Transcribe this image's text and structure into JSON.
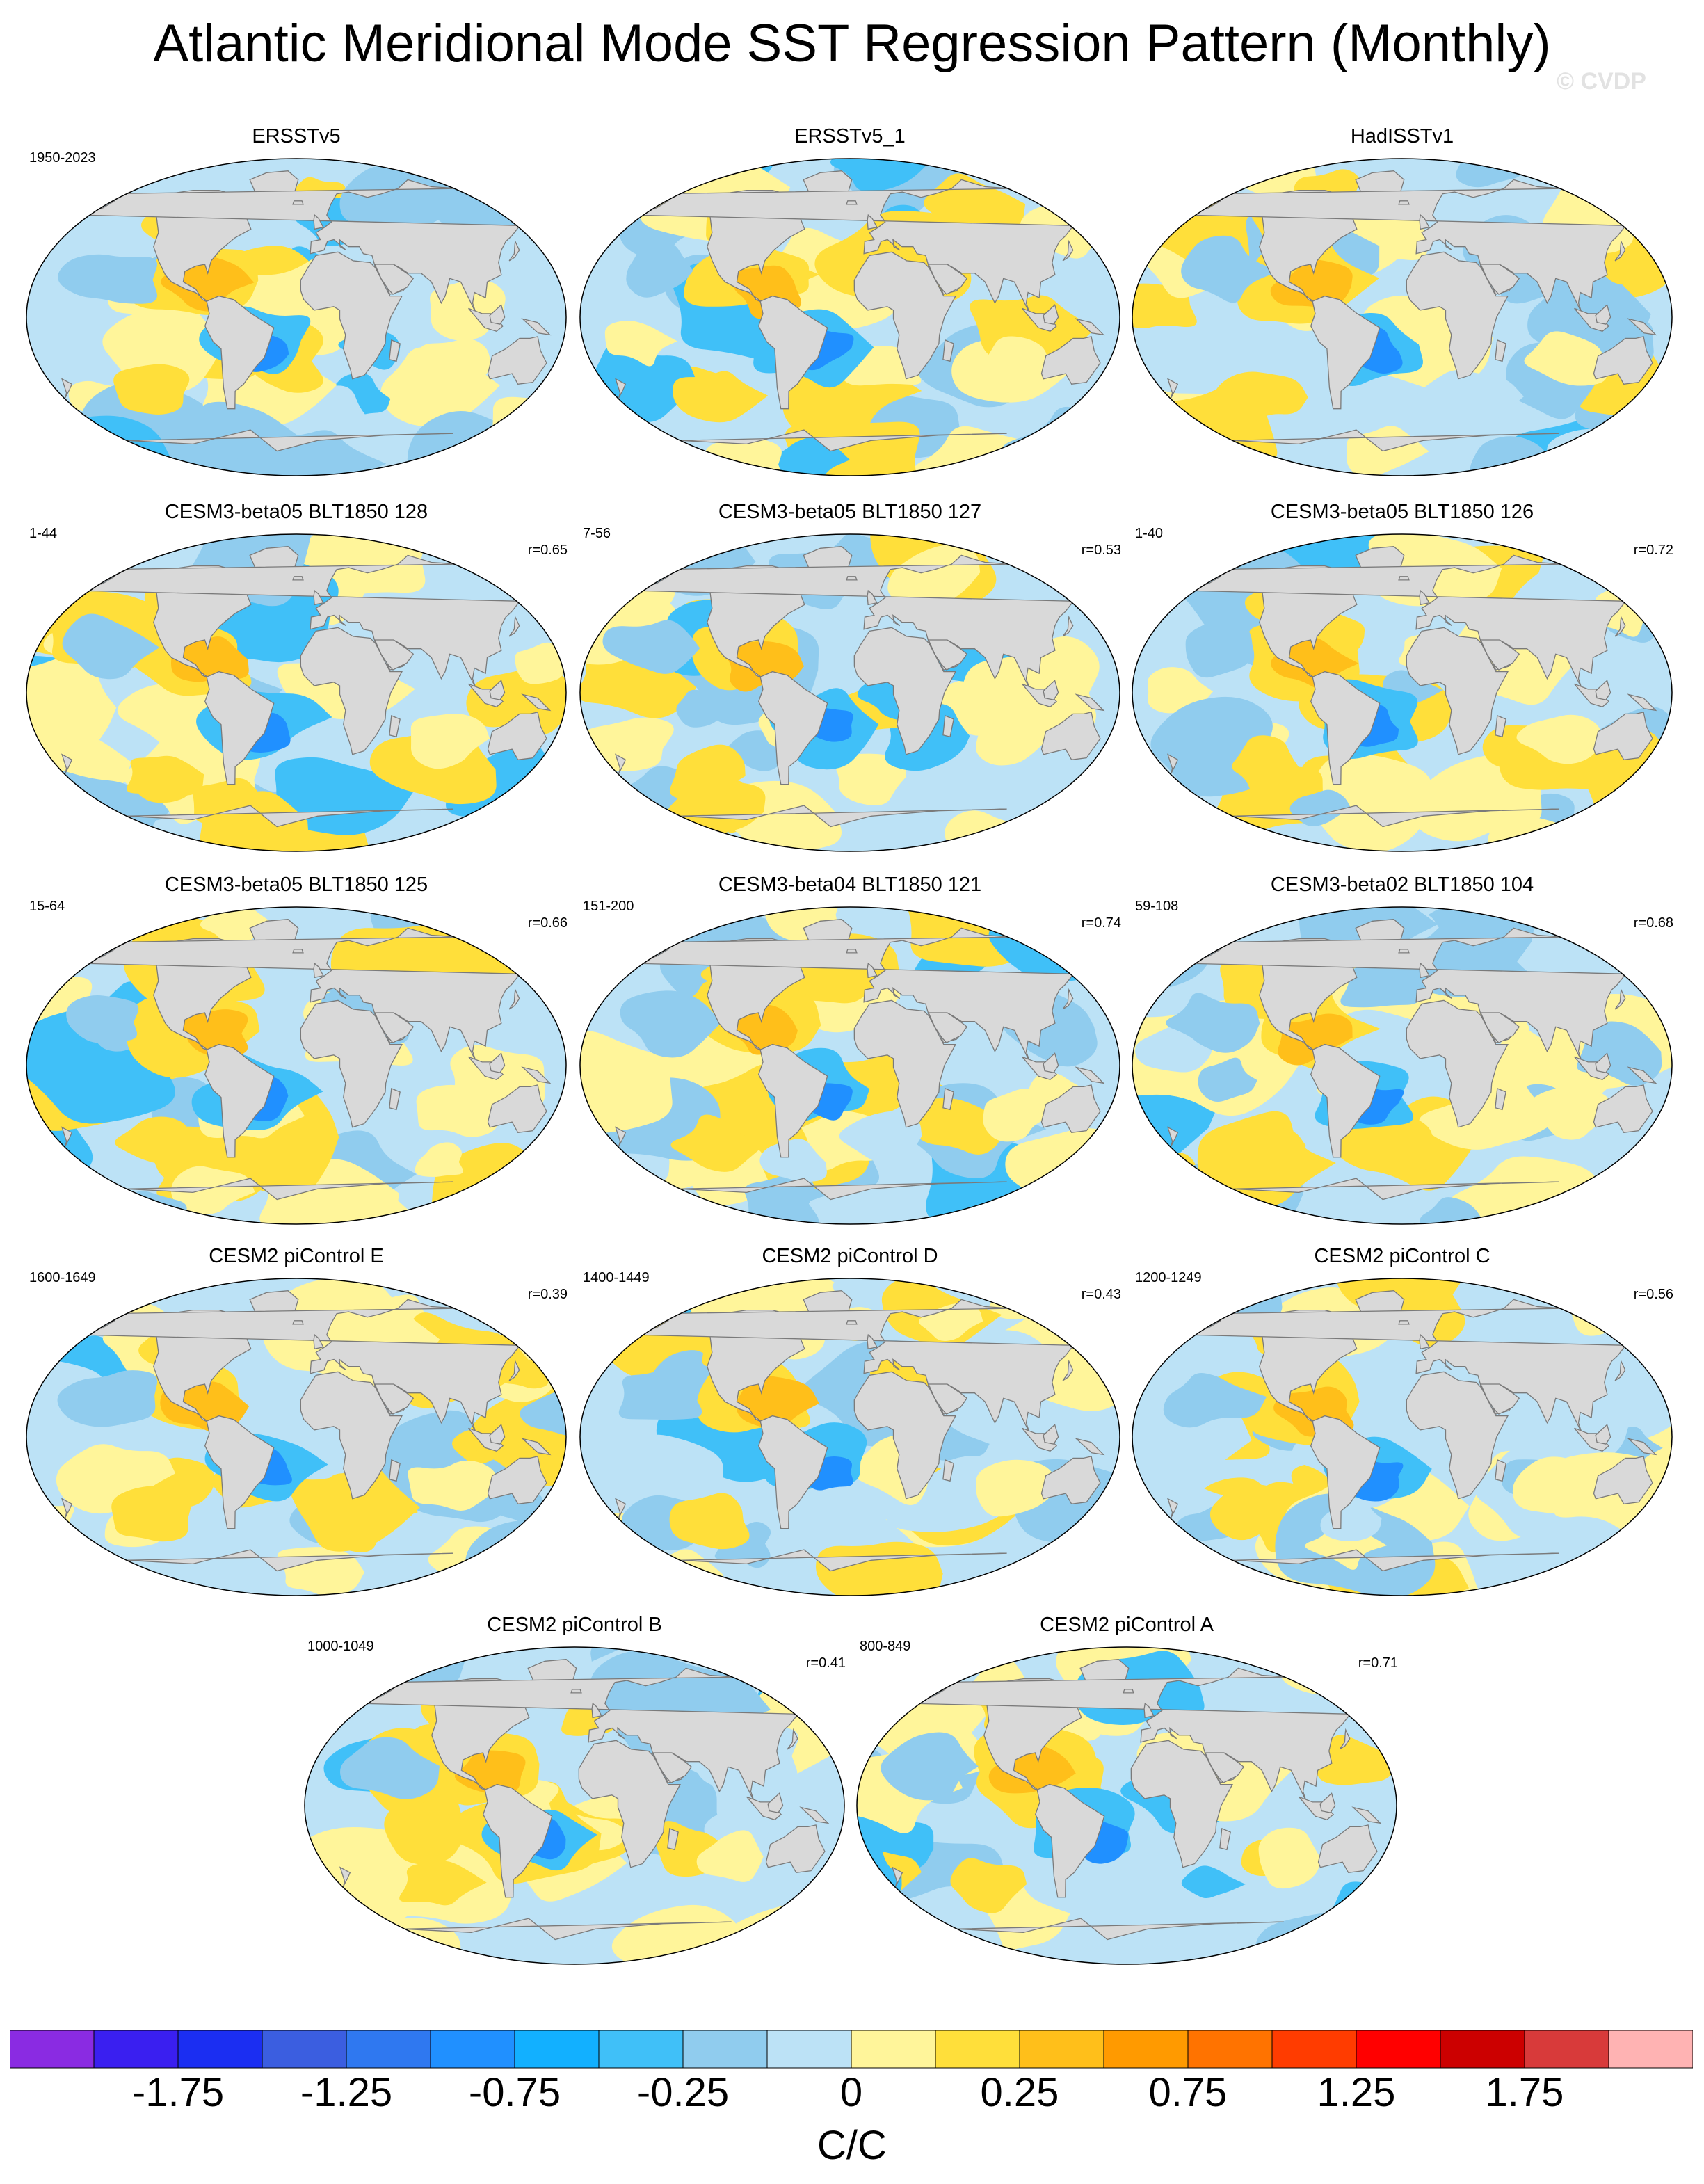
{
  "title": "Atlantic Meridional Mode SST Regression Pattern (Monthly)",
  "watermark": "© CVDP",
  "panels": [
    {
      "title": "ERSSTv5",
      "period": "1950-2023",
      "corr": "",
      "pattern": 0
    },
    {
      "title": "ERSSTv5_1",
      "period": "",
      "corr": "",
      "pattern": 1
    },
    {
      "title": "HadISSTv1",
      "period": "",
      "corr": "",
      "pattern": 2
    },
    {
      "title": "CESM3-beta05 BLT1850 128",
      "period": "1-44",
      "corr": "r=0.65",
      "pattern": 3
    },
    {
      "title": "CESM3-beta05 BLT1850 127",
      "period": "7-56",
      "corr": "r=0.53",
      "pattern": 4
    },
    {
      "title": "CESM3-beta05 BLT1850 126",
      "period": "1-40",
      "corr": "r=0.72",
      "pattern": 5
    },
    {
      "title": "CESM3-beta05 BLT1850 125",
      "period": "15-64",
      "corr": "r=0.66",
      "pattern": 6
    },
    {
      "title": "CESM3-beta04 BLT1850 121",
      "period": "151-200",
      "corr": "r=0.74",
      "pattern": 7
    },
    {
      "title": "CESM3-beta02 BLT1850 104",
      "period": "59-108",
      "corr": "r=0.68",
      "pattern": 8
    },
    {
      "title": "CESM2 piControl E",
      "period": "1600-1649",
      "corr": "r=0.39",
      "pattern": 9
    },
    {
      "title": "CESM2 piControl D",
      "period": "1400-1449",
      "corr": "r=0.43",
      "pattern": 10
    },
    {
      "title": "CESM2 piControl C",
      "period": "1200-1249",
      "corr": "r=0.56",
      "pattern": 11
    },
    {
      "title": "CESM2 piControl B",
      "period": "1000-1049",
      "corr": "r=0.41",
      "pattern": 12
    },
    {
      "title": "CESM2 piControl A",
      "period": "800-849",
      "corr": "r=0.71",
      "pattern": 13
    }
  ],
  "colorbar": {
    "colors": [
      "#8a2be2",
      "#3a1ff0",
      "#1b2ef2",
      "#3b5ee0",
      "#2f78f0",
      "#2090ff",
      "#12b0ff",
      "#40c0f8",
      "#90ccee",
      "#bce2f6",
      "#fff59a",
      "#ffdf3a",
      "#ffbf1a",
      "#ff9a00",
      "#ff7300",
      "#ff3c00",
      "#ff0000",
      "#cc0000",
      "#d83a3a",
      "#ffb3b3"
    ],
    "labels": [
      "-1.75",
      "-1.25",
      "-0.75",
      "-0.25",
      "0",
      "0.25",
      "0.75",
      "1.25",
      "1.75"
    ],
    "label_positions": [
      2,
      4,
      6,
      8,
      10,
      12,
      14,
      16,
      18
    ],
    "units": "C/C"
  }
}
